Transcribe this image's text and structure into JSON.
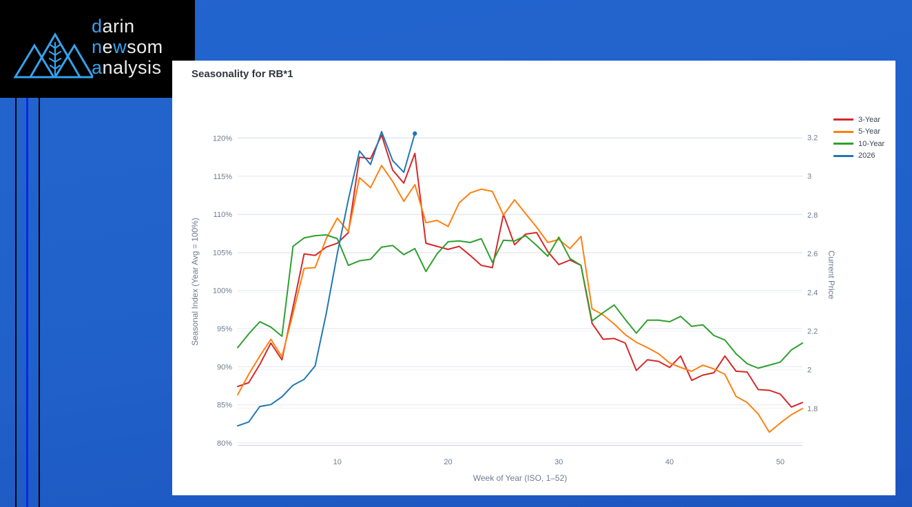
{
  "logo": {
    "l1a": "d",
    "l1b": "arin",
    "l2a": "n",
    "l2b": "e",
    "l2c": "w",
    "l2d": "som",
    "l3a": "a",
    "l3b": "nalysis",
    "accent_color": "#35a3ee"
  },
  "chart": {
    "title": "Seasonality for RB*1",
    "x_axis": {
      "title": "Week of Year (ISO, 1–52)",
      "tick_labels": [
        "10",
        "20",
        "30",
        "40",
        "50"
      ],
      "tick_weeks": [
        10,
        20,
        30,
        40,
        50
      ]
    },
    "y_left": {
      "title": "Seasonal Index (Year Avg = 100%)",
      "tick_labels": [
        "120%",
        "115%",
        "110%",
        "105%",
        "100%",
        "95%",
        "90%",
        "85%",
        "80%"
      ],
      "tick_values": [
        120,
        115,
        110,
        105,
        100,
        95,
        90,
        85,
        80
      ]
    },
    "y_right": {
      "title": "Current Price",
      "tick_labels": [
        "3.2",
        "3",
        "2.8",
        "2.6",
        "2.4",
        "2.2",
        "2",
        "1.8"
      ],
      "tick_values": [
        3.2,
        3.0,
        2.8,
        2.6,
        2.4,
        2.2,
        2.0,
        1.8
      ]
    },
    "legend": [
      {
        "label": "3-Year",
        "color": "#d62728"
      },
      {
        "label": "5-Year",
        "color": "#ff7f0e"
      },
      {
        "label": "10-Year",
        "color": "#2ca02c"
      },
      {
        "label": "2026",
        "color": "#1f77b4"
      }
    ]
  },
  "chart_data": {
    "type": "line",
    "title": "Seasonality for RB*1",
    "xlabel": "Week of Year (ISO, 1–52)",
    "ylabel_left": "Seasonal Index (Year Avg = 100%)",
    "ylabel_right": "Current Price",
    "x_range": [
      1,
      52
    ],
    "ylim_left": [
      79,
      121.5
    ],
    "ylim_right": [
      1.62,
      3.25
    ],
    "grid": true,
    "legend_position": "top-right",
    "series": [
      {
        "name": "3-Year",
        "axis": "left",
        "color": "#d62728",
        "values": [
          87.4,
          87.9,
          90.3,
          93.1,
          90.9,
          97.8,
          104.8,
          104.6,
          105.7,
          106.2,
          107.6,
          117.5,
          117.3,
          120.4,
          115.8,
          114.1,
          118.0,
          106.2,
          105.8,
          105.4,
          105.8,
          104.6,
          103.3,
          103.0,
          110.0,
          106.0,
          107.4,
          107.6,
          105.1,
          103.4,
          104.0,
          103.3,
          95.7,
          93.6,
          93.7,
          93.1,
          89.5,
          90.9,
          90.7,
          89.9,
          91.4,
          88.2,
          88.9,
          89.2,
          91.4,
          89.4,
          89.3,
          87.0,
          86.9,
          86.4,
          84.7,
          85.3
        ]
      },
      {
        "name": "5-Year",
        "axis": "left",
        "color": "#ff7f0e",
        "values": [
          86.3,
          89.0,
          91.4,
          93.6,
          91.3,
          97.0,
          102.9,
          103.0,
          106.8,
          109.5,
          107.7,
          114.8,
          113.5,
          116.4,
          114.3,
          111.7,
          113.9,
          108.9,
          109.2,
          108.4,
          111.5,
          112.8,
          113.3,
          113.0,
          109.9,
          111.9,
          110.1,
          108.3,
          106.3,
          106.7,
          105.5,
          107.1,
          97.6,
          96.8,
          95.6,
          94.2,
          93.2,
          92.5,
          91.7,
          90.5,
          89.9,
          89.4,
          90.2,
          89.7,
          89.0,
          86.1,
          85.3,
          83.8,
          81.4,
          82.6,
          83.7,
          84.5
        ]
      },
      {
        "name": "10-Year",
        "axis": "left",
        "color": "#2ca02c",
        "values": [
          92.5,
          94.3,
          95.9,
          95.2,
          94.0,
          105.8,
          106.9,
          107.2,
          107.3,
          106.8,
          103.3,
          103.9,
          104.1,
          105.7,
          105.9,
          104.7,
          105.5,
          102.5,
          104.8,
          106.4,
          106.5,
          106.3,
          106.8,
          103.7,
          106.6,
          106.5,
          107.2,
          105.9,
          104.5,
          107.0,
          104.2,
          103.3,
          96.0,
          97.1,
          98.1,
          96.2,
          94.4,
          96.1,
          96.1,
          95.9,
          96.6,
          95.3,
          95.5,
          94.1,
          93.5,
          91.7,
          90.4,
          89.8,
          90.2,
          90.6,
          92.2,
          93.1
        ]
      },
      {
        "name": "2026",
        "axis": "right",
        "color": "#1f77b4",
        "end_marker": true,
        "values": [
          1.71,
          1.73,
          1.81,
          1.82,
          1.86,
          1.92,
          1.95,
          2.02,
          2.29,
          2.6,
          2.88,
          3.13,
          3.06,
          3.23,
          3.08,
          3.02,
          3.22
        ]
      }
    ]
  }
}
